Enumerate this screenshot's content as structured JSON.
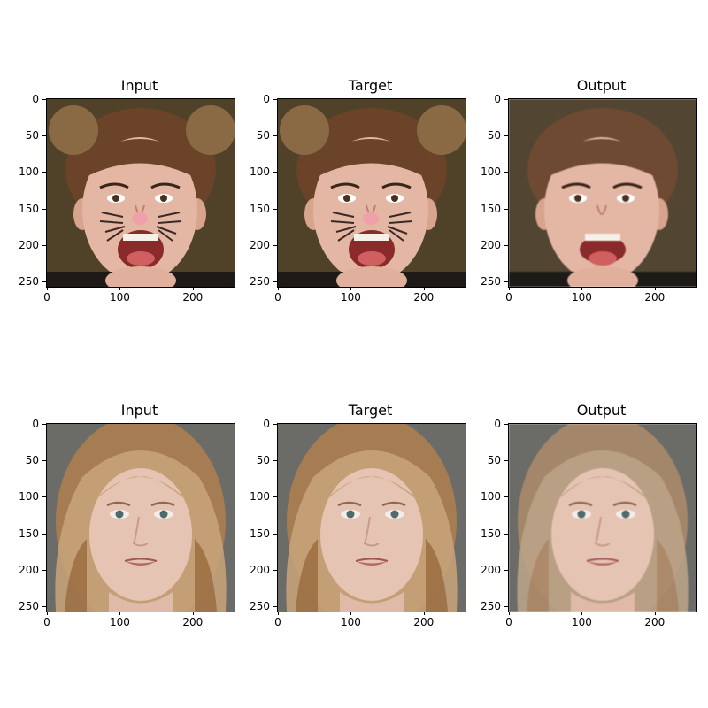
{
  "figure": {
    "rows": [
      {
        "panels": [
          {
            "title": "Input",
            "subject": "girl-cat-face-paint"
          },
          {
            "title": "Target",
            "subject": "girl-cat-face-paint"
          },
          {
            "title": "Output",
            "subject": "girl-smiling"
          }
        ]
      },
      {
        "panels": [
          {
            "title": "Input",
            "subject": "woman-blonde"
          },
          {
            "title": "Target",
            "subject": "woman-blonde"
          },
          {
            "title": "Output",
            "subject": "woman-blonde-generated"
          }
        ]
      }
    ],
    "y_ticks": [
      "0",
      "50",
      "100",
      "150",
      "200",
      "250"
    ],
    "x_ticks": [
      "0",
      "100",
      "200"
    ]
  }
}
